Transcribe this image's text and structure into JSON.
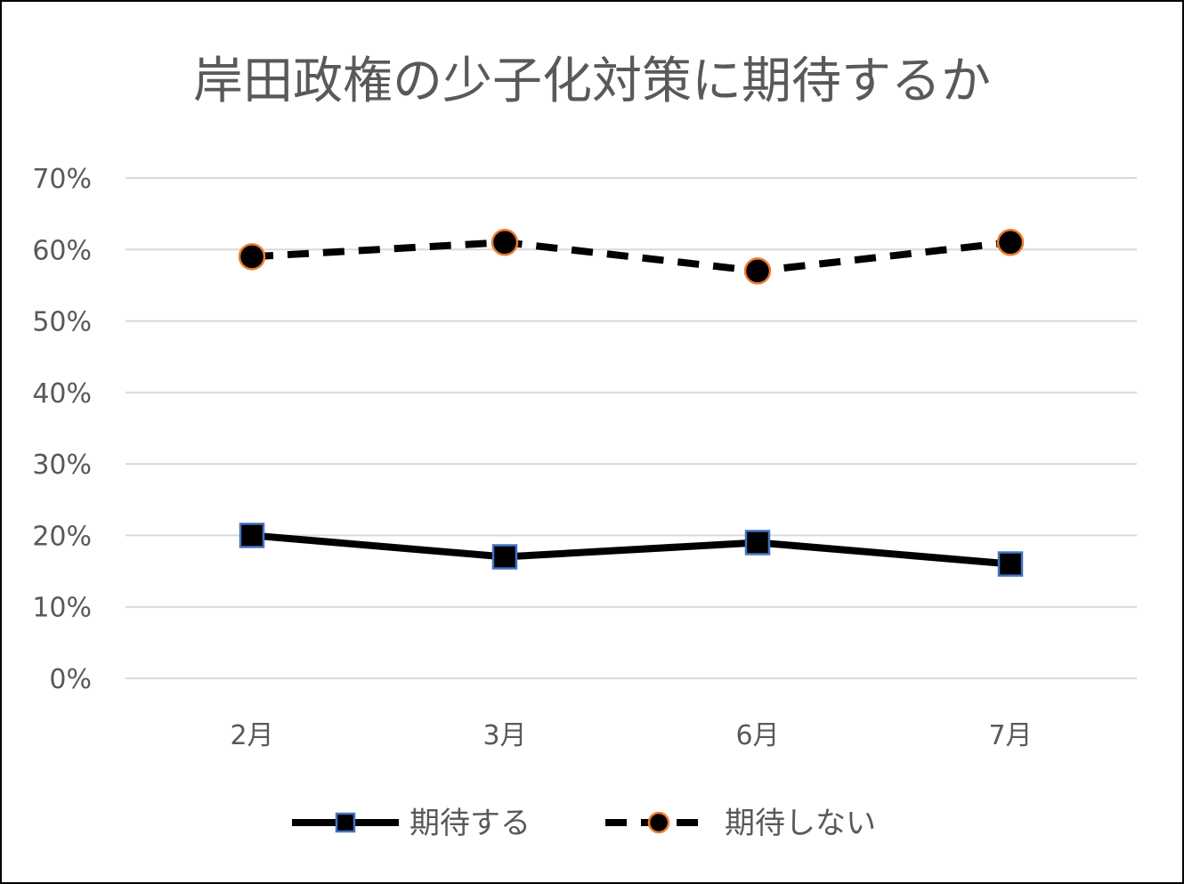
{
  "chart_data": {
    "type": "line",
    "title": "岸田政権の少子化対策に期待するか",
    "categories": [
      "2月",
      "3月",
      "6月",
      "7月"
    ],
    "y_ticks": [
      "0%",
      "10%",
      "20%",
      "30%",
      "40%",
      "50%",
      "60%",
      "70%"
    ],
    "ylim": [
      0,
      70
    ],
    "grid": true,
    "legend_position": "bottom",
    "series": [
      {
        "name": "期待する",
        "values": [
          20,
          17,
          19,
          16
        ],
        "line_style": "solid",
        "marker": "square",
        "line_color": "#000000",
        "marker_fill": "#000000",
        "marker_edge": "#4472C4"
      },
      {
        "name": "期待しない",
        "values": [
          59,
          61,
          57,
          61
        ],
        "line_style": "dashed",
        "marker": "circle",
        "line_color": "#000000",
        "marker_fill": "#000000",
        "marker_edge": "#ED7D31"
      }
    ]
  }
}
